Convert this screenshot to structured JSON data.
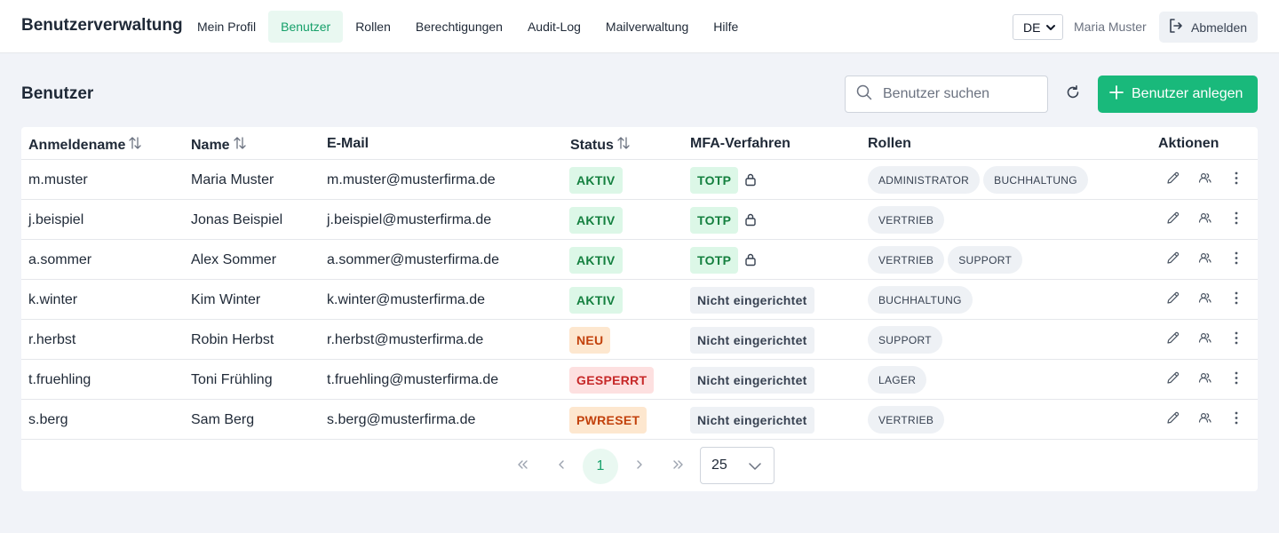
{
  "app": {
    "title": "Benutzerverwaltung",
    "nav": [
      {
        "label": "Mein Profil",
        "active": false
      },
      {
        "label": "Benutzer",
        "active": true
      },
      {
        "label": "Rollen",
        "active": false
      },
      {
        "label": "Berechtigungen",
        "active": false
      },
      {
        "label": "Audit-Log",
        "active": false
      },
      {
        "label": "Mailverwaltung",
        "active": false
      },
      {
        "label": "Hilfe",
        "active": false
      }
    ],
    "language": "DE",
    "user_name": "Maria Muster",
    "logout_label": "Abmelden"
  },
  "page": {
    "title": "Benutzer",
    "search_placeholder": "Benutzer suchen",
    "add_button_label": "Benutzer anlegen"
  },
  "table": {
    "columns": {
      "login": "Anmeldename",
      "name": "Name",
      "email": "E-Mail",
      "status": "Status",
      "mfa": "MFA-Verfahren",
      "roles": "Rollen",
      "actions": "Aktionen"
    },
    "rows": [
      {
        "login": "m.muster",
        "name": "Maria Muster",
        "email": "m.muster@musterfirma.de",
        "status": "AKTIV",
        "status_kind": "aktiv",
        "mfa": "TOTP",
        "mfa_set": true,
        "roles": [
          "ADMINISTRATOR",
          "BUCHHALTUNG"
        ]
      },
      {
        "login": "j.beispiel",
        "name": "Jonas Beispiel",
        "email": "j.beispiel@musterfirma.de",
        "status": "AKTIV",
        "status_kind": "aktiv",
        "mfa": "TOTP",
        "mfa_set": true,
        "roles": [
          "VERTRIEB"
        ]
      },
      {
        "login": "a.sommer",
        "name": "Alex Sommer",
        "email": "a.sommer@musterfirma.de",
        "status": "AKTIV",
        "status_kind": "aktiv",
        "mfa": "TOTP",
        "mfa_set": true,
        "roles": [
          "VERTRIEB",
          "SUPPORT"
        ]
      },
      {
        "login": "k.winter",
        "name": "Kim Winter",
        "email": "k.winter@musterfirma.de",
        "status": "AKTIV",
        "status_kind": "aktiv",
        "mfa": "Nicht eingerichtet",
        "mfa_set": false,
        "roles": [
          "BUCHHALTUNG"
        ]
      },
      {
        "login": "r.herbst",
        "name": "Robin Herbst",
        "email": "r.herbst@musterfirma.de",
        "status": "NEU",
        "status_kind": "neu",
        "mfa": "Nicht eingerichtet",
        "mfa_set": false,
        "roles": [
          "SUPPORT"
        ]
      },
      {
        "login": "t.fruehling",
        "name": "Toni Frühling",
        "email": "t.fruehling@musterfirma.de",
        "status": "GESPERRT",
        "status_kind": "gesperrt",
        "mfa": "Nicht eingerichtet",
        "mfa_set": false,
        "roles": [
          "LAGER"
        ]
      },
      {
        "login": "s.berg",
        "name": "Sam Berg",
        "email": "s.berg@musterfirma.de",
        "status": "PWRESET",
        "status_kind": "pwreset",
        "mfa": "Nicht eingerichtet",
        "mfa_set": false,
        "roles": [
          "VERTRIEB"
        ]
      }
    ]
  },
  "pagination": {
    "current_page": "1",
    "page_size": "25"
  },
  "colors": {
    "accent": "#19b97b",
    "accent_light": "#e9f8f1",
    "background": "#f1f3f8"
  }
}
